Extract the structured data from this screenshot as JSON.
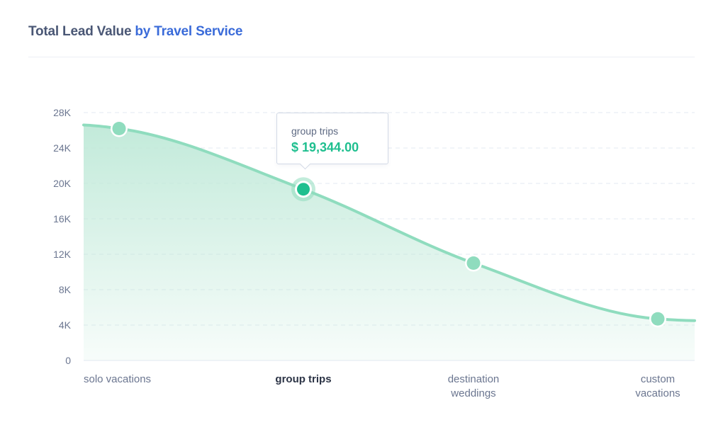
{
  "header": {
    "title_part1": "Total Lead Value ",
    "title_part2": "by Travel Service"
  },
  "tooltip": {
    "label": "group trips",
    "value": "$ 19,344.00"
  },
  "colors": {
    "line": "#8fdcbe",
    "area_top": "#bfe9d8",
    "point": "#8fdcbe",
    "active_point": "#1fbf8f",
    "accent_title": "#3a6bd9",
    "tooltip_value": "#1fbf8f"
  },
  "chart_data": {
    "type": "area",
    "categories": [
      [
        "solo vacations"
      ],
      [
        "group trips"
      ],
      [
        "destination",
        "weddings"
      ],
      [
        "custom",
        "vacations"
      ]
    ],
    "active_category_index": 1,
    "values": [
      26200,
      19344,
      11000,
      4700
    ],
    "start_value": 26600,
    "end_value": 4500,
    "y_ticks": [
      0,
      4000,
      8000,
      12000,
      16000,
      20000,
      24000,
      28000
    ],
    "y_tick_labels": [
      "0",
      "4K",
      "8K",
      "12K",
      "16K",
      "20K",
      "24K",
      "28K"
    ],
    "ylim": [
      0,
      28000
    ],
    "grid": true,
    "title": "Total Lead Value by Travel Service",
    "xlabel": "",
    "ylabel": ""
  }
}
